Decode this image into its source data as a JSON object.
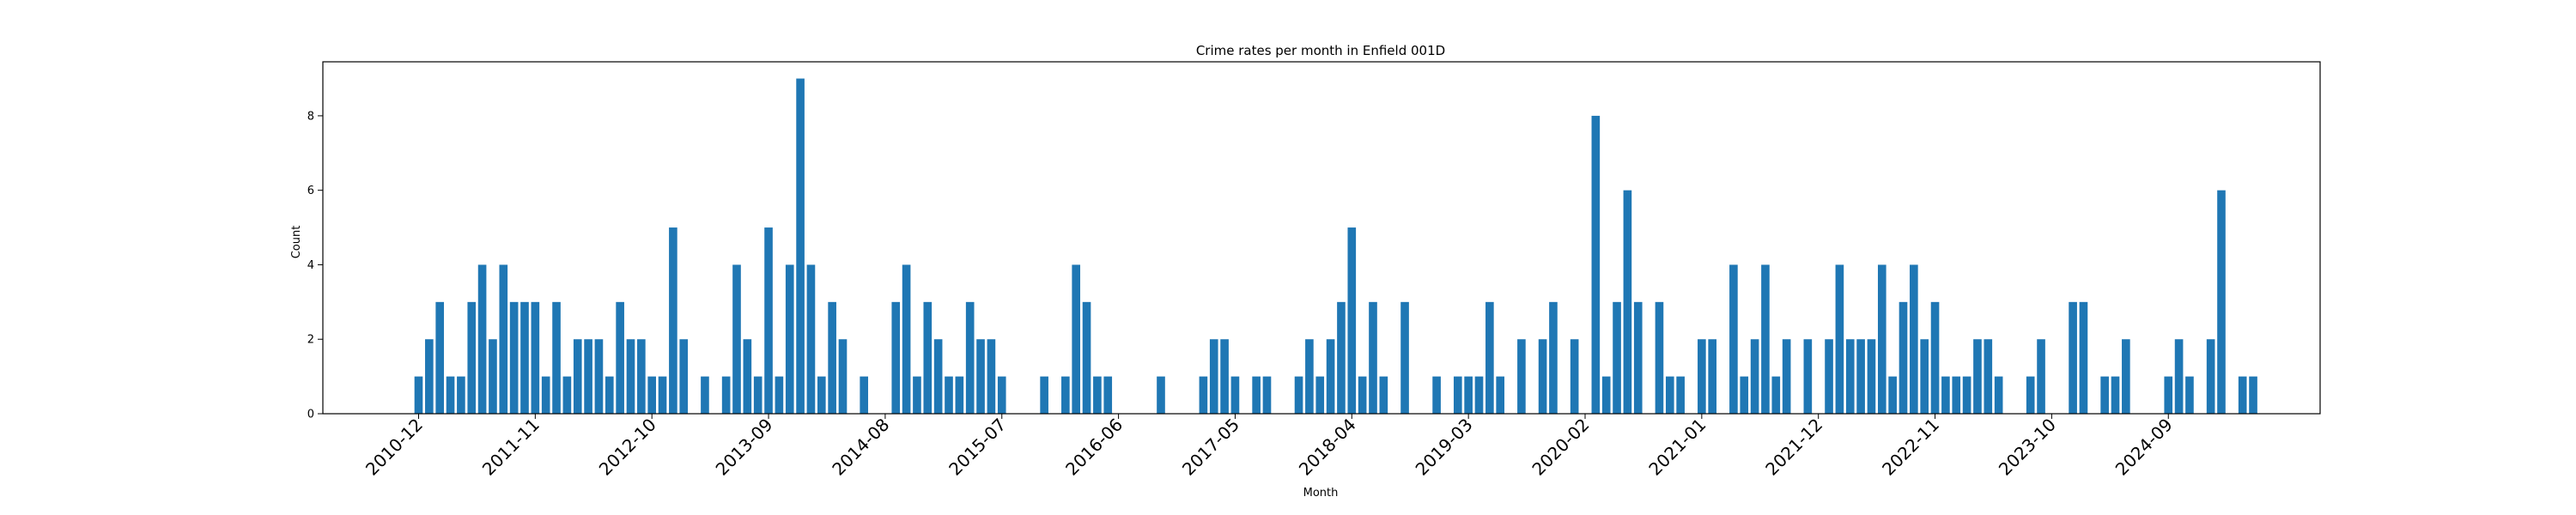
{
  "chart_data": {
    "type": "bar",
    "title": "Crime rates per month in Enfield 001D",
    "xlabel": "Month",
    "ylabel": "Count",
    "ylim": [
      0,
      9.45
    ],
    "yticks": [
      0,
      2,
      4,
      6,
      8
    ],
    "xticks": [
      "2010-12",
      "2011-11",
      "2012-10",
      "2013-09",
      "2014-08",
      "2015-07",
      "2016-06",
      "2017-05",
      "2018-04",
      "2019-03",
      "2020-02",
      "2021-01",
      "2021-12",
      "2022-11",
      "2023-10",
      "2024-09"
    ],
    "start_month": "2010-12",
    "grid": false,
    "bar_color": "#1f77b4",
    "values": [
      1,
      2,
      3,
      1,
      1,
      3,
      4,
      2,
      4,
      3,
      3,
      3,
      1,
      3,
      1,
      2,
      2,
      2,
      1,
      3,
      2,
      2,
      1,
      1,
      5,
      2,
      0,
      1,
      0,
      1,
      4,
      2,
      1,
      5,
      1,
      4,
      9,
      4,
      1,
      3,
      2,
      0,
      1,
      0,
      0,
      3,
      4,
      1,
      3,
      2,
      1,
      1,
      3,
      2,
      2,
      1,
      0,
      0,
      0,
      1,
      0,
      1,
      4,
      3,
      1,
      1,
      0,
      0,
      0,
      0,
      1,
      0,
      0,
      0,
      1,
      2,
      2,
      1,
      0,
      1,
      1,
      0,
      0,
      1,
      2,
      1,
      2,
      3,
      5,
      1,
      3,
      1,
      0,
      3,
      0,
      0,
      1,
      0,
      1,
      1,
      1,
      3,
      1,
      0,
      2,
      0,
      2,
      3,
      0,
      2,
      0,
      8,
      1,
      3,
      6,
      3,
      0,
      3,
      1,
      1,
      0,
      2,
      2,
      0,
      4,
      1,
      2,
      4,
      1,
      2,
      0,
      2,
      0,
      2,
      4,
      2,
      2,
      2,
      4,
      1,
      3,
      4,
      2,
      3,
      1,
      1,
      1,
      2,
      2,
      1,
      0,
      0,
      1,
      2,
      0,
      0,
      3,
      3,
      0,
      1,
      1,
      2,
      0,
      0,
      0,
      1,
      2,
      1,
      0,
      2,
      6,
      0,
      1,
      1
    ]
  }
}
